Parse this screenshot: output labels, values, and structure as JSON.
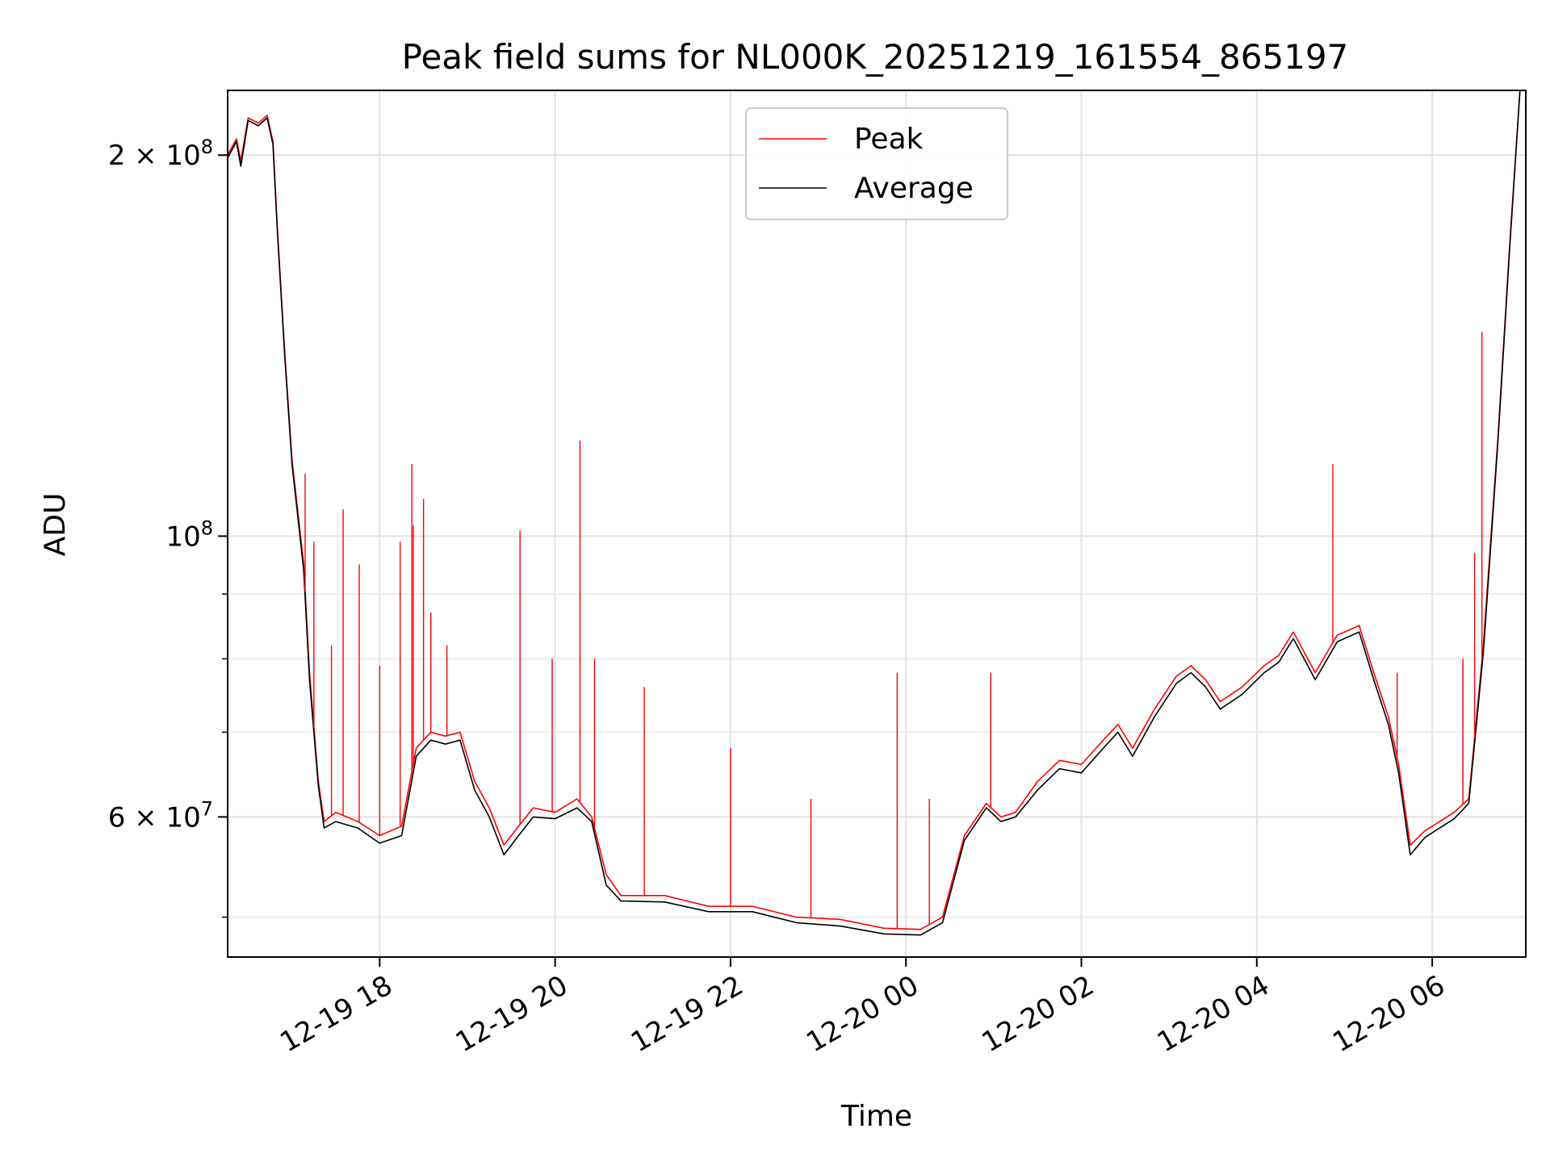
{
  "chart_data": {
    "type": "line",
    "title": "Peak field sums for NL000K_20251219_161554_865197",
    "xlabel": "Time",
    "ylabel": "ADU",
    "yscale": "log",
    "grid": true,
    "legend_placement": "upper-center",
    "xlim": [
      "2025-12-19 16:16",
      "2025-12-20 07:04"
    ],
    "ylim": [
      46500000,
      225000000
    ],
    "x_ticks": [
      {
        "value": "2025-12-19 18:00",
        "label": "12-19 18"
      },
      {
        "value": "2025-12-19 20:00",
        "label": "12-19 20"
      },
      {
        "value": "2025-12-19 22:00",
        "label": "12-19 22"
      },
      {
        "value": "2025-12-20 00:00",
        "label": "12-20 00"
      },
      {
        "value": "2025-12-20 02:00",
        "label": "12-20 02"
      },
      {
        "value": "2025-12-20 04:00",
        "label": "12-20 04"
      },
      {
        "value": "2025-12-20 06:00",
        "label": "12-20 06"
      }
    ],
    "y_major_ticks": [
      {
        "value": 60000000,
        "label": "6 × 10",
        "sup": "7"
      },
      {
        "value": 100000000,
        "label": "10",
        "sup": "8"
      },
      {
        "value": 200000000,
        "label": "2 × 10",
        "sup": "8"
      }
    ],
    "y_minor_ticks": [
      50000000,
      70000000,
      80000000,
      90000000
    ],
    "series": [
      {
        "name": "Peak",
        "color": "#ff0000",
        "x": [
          "2025-12-19 16:16",
          "2025-12-19 16:22",
          "2025-12-19 16:25",
          "2025-12-19 16:30",
          "2025-12-19 16:37",
          "2025-12-19 16:43",
          "2025-12-19 16:47",
          "2025-12-19 16:50",
          "2025-12-19 16:55",
          "2025-12-19 17:00",
          "2025-12-19 17:08",
          "2025-12-19 17:12",
          "2025-12-19 17:18",
          "2025-12-19 17:22",
          "2025-12-19 17:30",
          "2025-12-19 17:45",
          "2025-12-19 18:00",
          "2025-12-19 18:15",
          "2025-12-19 18:25",
          "2025-12-19 18:35",
          "2025-12-19 18:45",
          "2025-12-19 18:55",
          "2025-12-19 19:05",
          "2025-12-19 19:15",
          "2025-12-19 19:25",
          "2025-12-19 19:35",
          "2025-12-19 19:45",
          "2025-12-19 20:00",
          "2025-12-19 20:15",
          "2025-12-19 20:25",
          "2025-12-19 20:35",
          "2025-12-19 20:45",
          "2025-12-19 21:15",
          "2025-12-19 21:45",
          "2025-12-19 22:15",
          "2025-12-19 22:45",
          "2025-12-19 23:15",
          "2025-12-19 23:45",
          "2025-12-20 00:10",
          "2025-12-20 00:25",
          "2025-12-20 00:40",
          "2025-12-20 00:55",
          "2025-12-20 01:05",
          "2025-12-20 01:15",
          "2025-12-20 01:30",
          "2025-12-20 01:45",
          "2025-12-20 02:00",
          "2025-12-20 02:15",
          "2025-12-20 02:25",
          "2025-12-20 02:35",
          "2025-12-20 02:50",
          "2025-12-20 03:05",
          "2025-12-20 03:15",
          "2025-12-20 03:25",
          "2025-12-20 03:35",
          "2025-12-20 03:50",
          "2025-12-20 04:05",
          "2025-12-20 04:15",
          "2025-12-20 04:25",
          "2025-12-20 04:40",
          "2025-12-20 04:55",
          "2025-12-20 05:10",
          "2025-12-20 05:20",
          "2025-12-20 05:30",
          "2025-12-20 05:37",
          "2025-12-20 05:45",
          "2025-12-20 05:55",
          "2025-12-20 06:05",
          "2025-12-20 06:15",
          "2025-12-20 06:25",
          "2025-12-20 06:35",
          "2025-12-20 06:45",
          "2025-12-20 06:53",
          "2025-12-20 07:00"
        ],
        "y": [
          200000000,
          206000000,
          198000000,
          214000000,
          212000000,
          215000000,
          205000000,
          175000000,
          140000000,
          115000000,
          95000000,
          78000000,
          64000000,
          59500000,
          60500000,
          59500000,
          58000000,
          59000000,
          68000000,
          70000000,
          69500000,
          70000000,
          64000000,
          61000000,
          57000000,
          59000000,
          61000000,
          60500000,
          62000000,
          60000000,
          54000000,
          52000000,
          52000000,
          51000000,
          51000000,
          50000000,
          49800000,
          49000000,
          48900000,
          50000000,
          58000000,
          61500000,
          60000000,
          60500000,
          64000000,
          66500000,
          66000000,
          69000000,
          71000000,
          68000000,
          73000000,
          77500000,
          79000000,
          77000000,
          74000000,
          76000000,
          79000000,
          80500000,
          84000000,
          78000000,
          83500000,
          85000000,
          78000000,
          72000000,
          66000000,
          57000000,
          58500000,
          59500000,
          60500000,
          62000000,
          82000000,
          120000000,
          170000000,
          225000000
        ]
      },
      {
        "name": "Average",
        "color": "#000000",
        "x": [
          "2025-12-19 16:16",
          "2025-12-19 16:22",
          "2025-12-19 16:25",
          "2025-12-19 16:30",
          "2025-12-19 16:37",
          "2025-12-19 16:43",
          "2025-12-19 16:47",
          "2025-12-19 16:50",
          "2025-12-19 16:55",
          "2025-12-19 17:00",
          "2025-12-19 17:08",
          "2025-12-19 17:12",
          "2025-12-19 17:18",
          "2025-12-19 17:22",
          "2025-12-19 17:30",
          "2025-12-19 17:45",
          "2025-12-19 18:00",
          "2025-12-19 18:15",
          "2025-12-19 18:25",
          "2025-12-19 18:35",
          "2025-12-19 18:45",
          "2025-12-19 18:55",
          "2025-12-19 19:05",
          "2025-12-19 19:15",
          "2025-12-19 19:25",
          "2025-12-19 19:35",
          "2025-12-19 19:45",
          "2025-12-19 20:00",
          "2025-12-19 20:15",
          "2025-12-19 20:25",
          "2025-12-19 20:35",
          "2025-12-19 20:45",
          "2025-12-19 21:15",
          "2025-12-19 21:45",
          "2025-12-19 22:15",
          "2025-12-19 22:45",
          "2025-12-19 23:15",
          "2025-12-19 23:45",
          "2025-12-20 00:10",
          "2025-12-20 00:25",
          "2025-12-20 00:40",
          "2025-12-20 00:55",
          "2025-12-20 01:05",
          "2025-12-20 01:15",
          "2025-12-20 01:30",
          "2025-12-20 01:45",
          "2025-12-20 02:00",
          "2025-12-20 02:15",
          "2025-12-20 02:25",
          "2025-12-20 02:35",
          "2025-12-20 02:50",
          "2025-12-20 03:05",
          "2025-12-20 03:15",
          "2025-12-20 03:25",
          "2025-12-20 03:35",
          "2025-12-20 03:50",
          "2025-12-20 04:05",
          "2025-12-20 04:15",
          "2025-12-20 04:25",
          "2025-12-20 04:40",
          "2025-12-20 04:55",
          "2025-12-20 05:10",
          "2025-12-20 05:20",
          "2025-12-20 05:30",
          "2025-12-20 05:37",
          "2025-12-20 05:45",
          "2025-12-20 05:55",
          "2025-12-20 06:05",
          "2025-12-20 06:15",
          "2025-12-20 06:25",
          "2025-12-20 06:35",
          "2025-12-20 06:45",
          "2025-12-20 06:53",
          "2025-12-20 07:00"
        ],
        "y": [
          199000000,
          205000000,
          196000000,
          213000000,
          211000000,
          214000000,
          204000000,
          174000000,
          139000000,
          114000000,
          94000000,
          77000000,
          63500000,
          58800000,
          59500000,
          58800000,
          57200000,
          58000000,
          67000000,
          69000000,
          68500000,
          69000000,
          63000000,
          60000000,
          56000000,
          58000000,
          60000000,
          59800000,
          61000000,
          59500000,
          53000000,
          51500000,
          51400000,
          50500000,
          50500000,
          49500000,
          49200000,
          48500000,
          48400000,
          49500000,
          57500000,
          61000000,
          59500000,
          60000000,
          63000000,
          65500000,
          65000000,
          68000000,
          70000000,
          67000000,
          72000000,
          76500000,
          78000000,
          76000000,
          73000000,
          75000000,
          78000000,
          79500000,
          83000000,
          77000000,
          82500000,
          84000000,
          77000000,
          71000000,
          65000000,
          56000000,
          57800000,
          58800000,
          59800000,
          61500000,
          81000000,
          119000000,
          169000000,
          225000000
        ]
      }
    ],
    "peak_spikes": [
      {
        "x": "2025-12-19 17:09",
        "y": 112000000
      },
      {
        "x": "2025-12-19 17:15",
        "y": 99000000
      },
      {
        "x": "2025-12-19 17:27",
        "y": 82000000
      },
      {
        "x": "2025-12-19 17:35",
        "y": 105000000
      },
      {
        "x": "2025-12-19 17:46",
        "y": 95000000
      },
      {
        "x": "2025-12-19 18:00",
        "y": 79000000
      },
      {
        "x": "2025-12-19 18:14",
        "y": 99000000
      },
      {
        "x": "2025-12-19 18:22",
        "y": 114000000
      },
      {
        "x": "2025-12-19 18:23",
        "y": 102000000
      },
      {
        "x": "2025-12-19 18:30",
        "y": 107000000
      },
      {
        "x": "2025-12-19 18:35",
        "y": 87000000
      },
      {
        "x": "2025-12-19 18:46",
        "y": 82000000
      },
      {
        "x": "2025-12-19 19:36",
        "y": 101000000
      },
      {
        "x": "2025-12-19 19:58",
        "y": 80000000
      },
      {
        "x": "2025-12-19 20:17",
        "y": 119000000
      },
      {
        "x": "2025-12-19 20:27",
        "y": 80000000
      },
      {
        "x": "2025-12-19 21:01",
        "y": 76000000
      },
      {
        "x": "2025-12-19 22:00",
        "y": 68000000
      },
      {
        "x": "2025-12-19 22:55",
        "y": 62000000
      },
      {
        "x": "2025-12-19 23:54",
        "y": 78000000
      },
      {
        "x": "2025-12-20 00:16",
        "y": 62000000
      },
      {
        "x": "2025-12-20 00:58",
        "y": 78000000
      },
      {
        "x": "2025-12-20 04:52",
        "y": 114000000
      },
      {
        "x": "2025-12-20 05:36",
        "y": 78000000
      },
      {
        "x": "2025-12-20 06:21",
        "y": 80000000
      },
      {
        "x": "2025-12-20 06:29",
        "y": 97000000
      },
      {
        "x": "2025-12-20 06:34",
        "y": 145000000
      }
    ]
  },
  "legend": {
    "items": [
      {
        "label": "Peak",
        "color": "#ff0000"
      },
      {
        "label": "Average",
        "color": "#000000"
      }
    ]
  }
}
